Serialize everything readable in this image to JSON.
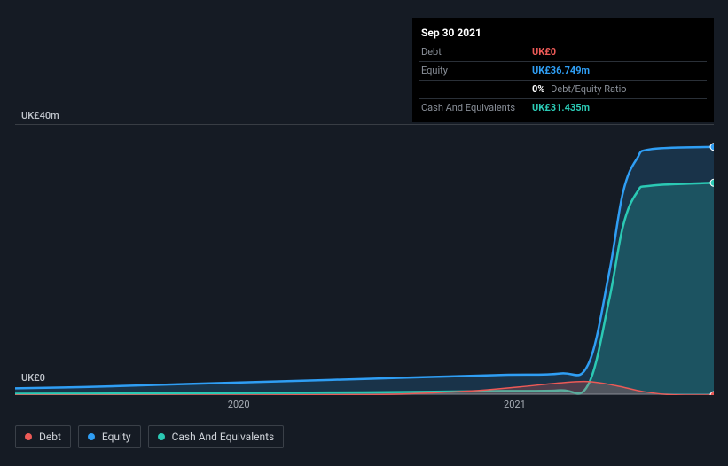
{
  "tooltip": {
    "date": "Sep 30 2021",
    "rows": [
      {
        "label": "Debt",
        "value": "UK£0",
        "color": "#ec5a57"
      },
      {
        "label": "Equity",
        "value": "UK£36.749m",
        "color": "#2f9ef4"
      },
      {
        "label": "",
        "value": "0%",
        "suffix": "Debt/Equity Ratio",
        "color": "#ffffff"
      },
      {
        "label": "Cash And Equivalents",
        "value": "UK£31.435m",
        "color": "#2bc9b4"
      }
    ]
  },
  "chart": {
    "type": "area",
    "y_axis": {
      "min": 0,
      "max": 40,
      "top_label": "UK£40m",
      "bottom_label": "UK£0"
    },
    "x_axis": {
      "ticks": [
        {
          "label": "2020",
          "pos": 0.32
        },
        {
          "label": "2021",
          "pos": 0.715
        }
      ]
    },
    "background_color": "#151b24",
    "grid_color": "rgba(255,255,255,0.15)",
    "series": [
      {
        "name": "Equity",
        "color": "#2f9ef4",
        "fill": "rgba(47,158,244,0.18)",
        "stroke_width": 2.5,
        "points": [
          [
            0.0,
            1.0
          ],
          [
            0.1,
            1.2
          ],
          [
            0.2,
            1.5
          ],
          [
            0.3,
            1.8
          ],
          [
            0.4,
            2.1
          ],
          [
            0.5,
            2.4
          ],
          [
            0.6,
            2.7
          ],
          [
            0.7,
            3.0
          ],
          [
            0.78,
            3.2
          ],
          [
            0.82,
            4.5
          ],
          [
            0.85,
            18.0
          ],
          [
            0.87,
            30.0
          ],
          [
            0.89,
            35.0
          ],
          [
            0.91,
            36.4
          ],
          [
            1.0,
            36.749
          ]
        ],
        "end_marker": true
      },
      {
        "name": "Cash And Equivalents",
        "color": "#2bc9b4",
        "fill": "rgba(43,201,180,0.22)",
        "stroke_width": 2.5,
        "points": [
          [
            0.0,
            0.2
          ],
          [
            0.1,
            0.22
          ],
          [
            0.2,
            0.25
          ],
          [
            0.3,
            0.3
          ],
          [
            0.4,
            0.35
          ],
          [
            0.5,
            0.4
          ],
          [
            0.6,
            0.5
          ],
          [
            0.7,
            0.6
          ],
          [
            0.78,
            0.7
          ],
          [
            0.82,
            1.5
          ],
          [
            0.85,
            14.0
          ],
          [
            0.87,
            25.0
          ],
          [
            0.89,
            30.0
          ],
          [
            0.91,
            31.0
          ],
          [
            1.0,
            31.435
          ]
        ],
        "end_marker": true
      },
      {
        "name": "Debt",
        "color": "#ec5a57",
        "fill": "rgba(236,90,87,0.25)",
        "stroke_width": 1.5,
        "points": [
          [
            0.0,
            0.0
          ],
          [
            0.3,
            0.0
          ],
          [
            0.45,
            0.05
          ],
          [
            0.55,
            0.15
          ],
          [
            0.65,
            0.6
          ],
          [
            0.72,
            1.2
          ],
          [
            0.78,
            1.8
          ],
          [
            0.82,
            2.0
          ],
          [
            0.86,
            1.4
          ],
          [
            0.9,
            0.5
          ],
          [
            0.94,
            0.05
          ],
          [
            1.0,
            0.0
          ]
        ],
        "end_marker": true
      }
    ]
  },
  "legend": {
    "items": [
      {
        "label": "Debt",
        "color": "#ec5a57"
      },
      {
        "label": "Equity",
        "color": "#2f9ef4"
      },
      {
        "label": "Cash And Equivalents",
        "color": "#2bc9b4"
      }
    ]
  }
}
